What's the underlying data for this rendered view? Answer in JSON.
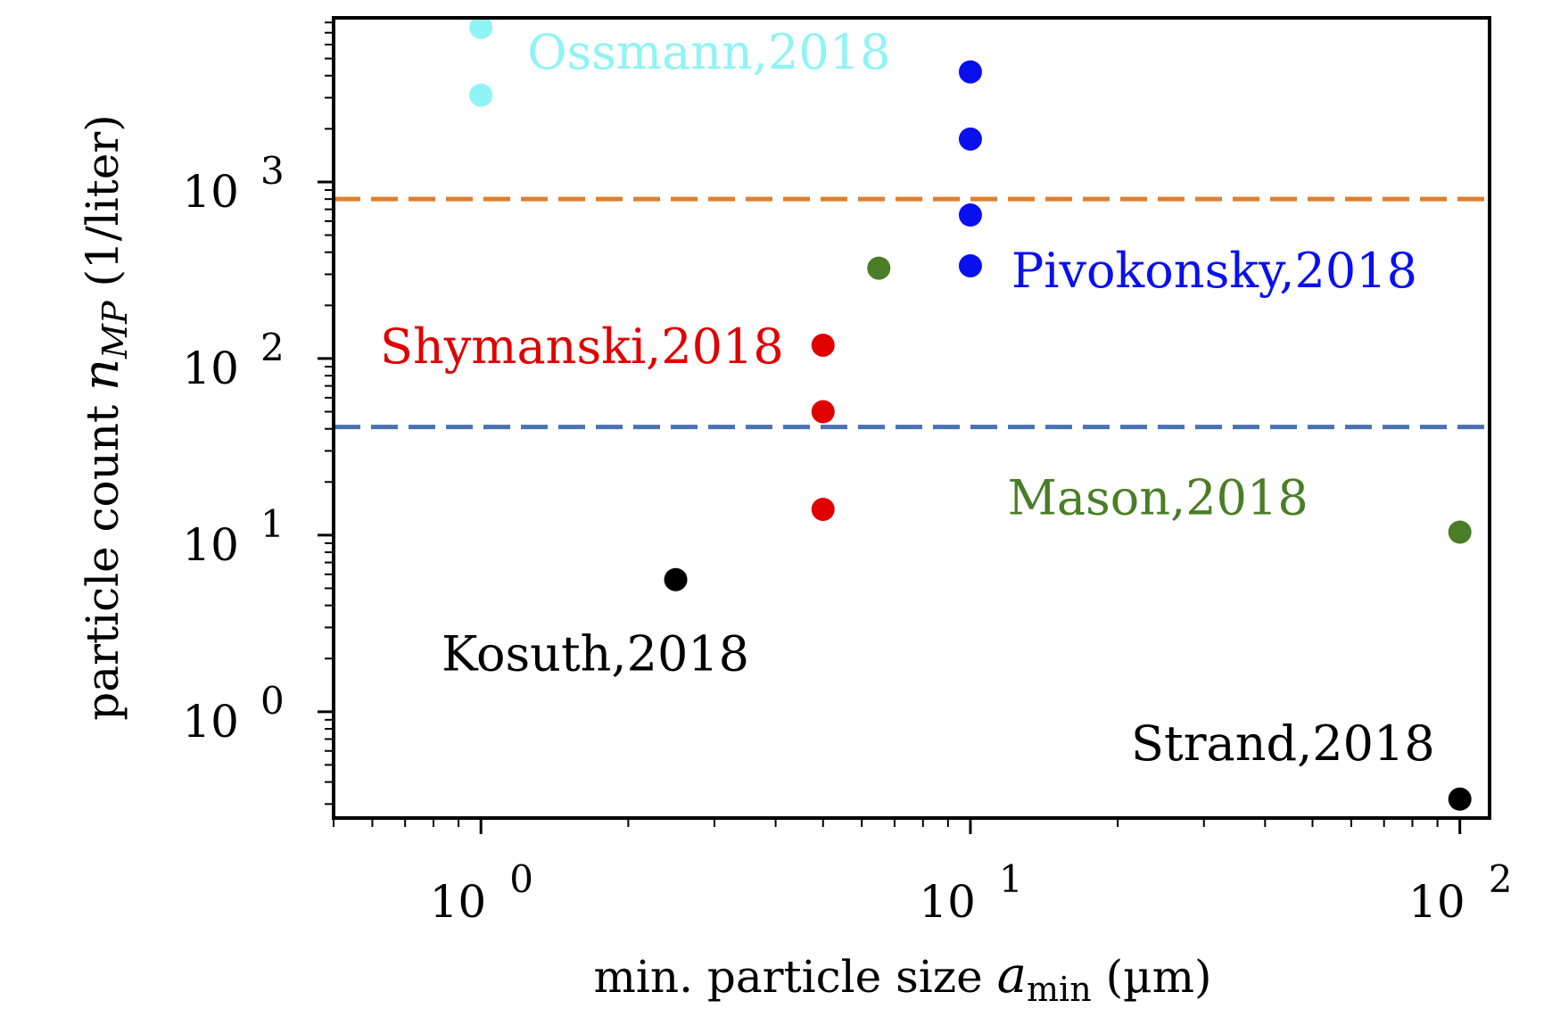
{
  "chart_data": {
    "type": "scatter",
    "xscale": "log",
    "yscale": "log",
    "xlim": [
      0.5,
      115
    ],
    "ylim": [
      0.25,
      8500
    ],
    "xlabel": {
      "prefix": "min. particle size ",
      "symbol": "a",
      "subscript": "min",
      "suffix": " (µm)"
    },
    "ylabel": {
      "prefix": "particle count ",
      "symbol": "n",
      "subscript": "MP",
      "suffix": " (1/liter)"
    },
    "x_ticks": [
      {
        "base": "10",
        "exp": "0",
        "value": 1
      },
      {
        "base": "10",
        "exp": "1",
        "value": 10
      },
      {
        "base": "10",
        "exp": "2",
        "value": 100
      }
    ],
    "y_ticks": [
      {
        "base": "10",
        "exp": "0",
        "value": 1
      },
      {
        "base": "10",
        "exp": "1",
        "value": 10
      },
      {
        "base": "10",
        "exp": "2",
        "value": 100
      },
      {
        "base": "10",
        "exp": "3",
        "value": 1000
      }
    ],
    "hlines": [
      {
        "y": 800,
        "color": "#e07f2b",
        "style": "dashed"
      },
      {
        "y": 41,
        "color": "#4a72b0",
        "style": "dashed"
      }
    ],
    "series": [
      {
        "name": "Ossmann,2018",
        "color": "#8ef4f4",
        "points": [
          [
            1,
            7500
          ],
          [
            1,
            3100
          ]
        ]
      },
      {
        "name": "Pivokonsky,2018",
        "color": "#0a0ff0",
        "points": [
          [
            10,
            4200
          ],
          [
            10,
            1750
          ],
          [
            10,
            650
          ],
          [
            10,
            335
          ]
        ]
      },
      {
        "name": "Mason,2018",
        "color": "#4a7e26",
        "points": [
          [
            6.5,
            325
          ],
          [
            100,
            10.4
          ]
        ]
      },
      {
        "name": "Shymanski,2018",
        "color": "#e00000",
        "points": [
          [
            5,
            119
          ],
          [
            5,
            50
          ],
          [
            5,
            14
          ]
        ]
      },
      {
        "name": "Kosuth,2018",
        "color": "#000000",
        "points": [
          [
            2.5,
            5.6
          ]
        ]
      },
      {
        "name": "Strand,2018",
        "color": "#000000",
        "points": [
          [
            100,
            0.32
          ]
        ]
      }
    ]
  }
}
